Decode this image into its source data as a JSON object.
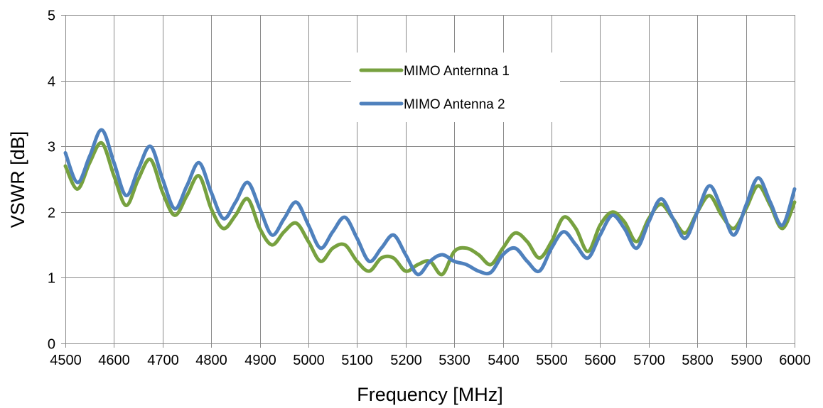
{
  "chart_data": {
    "type": "line",
    "xlabel": "Frequency [MHz]",
    "ylabel": "VSWR [dB]",
    "xlim": [
      4500,
      6000
    ],
    "ylim": [
      0,
      5
    ],
    "x_ticks": [
      4500,
      4600,
      4700,
      4800,
      4900,
      5000,
      5100,
      5200,
      5300,
      5400,
      5500,
      5600,
      5700,
      5800,
      5900,
      6000
    ],
    "y_ticks": [
      0,
      1,
      2,
      3,
      4,
      5
    ],
    "grid": true,
    "legend": "top-center",
    "x": [
      4500,
      4525,
      4550,
      4575,
      4600,
      4625,
      4650,
      4675,
      4700,
      4725,
      4750,
      4775,
      4800,
      4825,
      4850,
      4875,
      4900,
      4925,
      4950,
      4975,
      5000,
      5025,
      5050,
      5075,
      5100,
      5125,
      5150,
      5175,
      5200,
      5225,
      5250,
      5275,
      5300,
      5325,
      5350,
      5375,
      5400,
      5425,
      5450,
      5475,
      5500,
      5525,
      5550,
      5575,
      5600,
      5625,
      5650,
      5675,
      5700,
      5725,
      5750,
      5775,
      5800,
      5825,
      5850,
      5875,
      5900,
      5925,
      5950,
      5975,
      6000
    ],
    "series": [
      {
        "name": "MIMO Anternna 1",
        "color": "#77a13f",
        "values": [
          2.7,
          2.35,
          2.75,
          3.05,
          2.55,
          2.1,
          2.5,
          2.8,
          2.3,
          1.95,
          2.25,
          2.55,
          2.05,
          1.75,
          1.95,
          2.2,
          1.75,
          1.5,
          1.7,
          1.83,
          1.55,
          1.25,
          1.45,
          1.5,
          1.25,
          1.1,
          1.3,
          1.3,
          1.1,
          1.2,
          1.25,
          1.05,
          1.4,
          1.45,
          1.35,
          1.2,
          1.45,
          1.68,
          1.55,
          1.3,
          1.55,
          1.92,
          1.75,
          1.4,
          1.8,
          2.0,
          1.85,
          1.55,
          1.9,
          2.12,
          1.9,
          1.68,
          2.0,
          2.25,
          1.95,
          1.75,
          2.05,
          2.4,
          2.1,
          1.75,
          2.15
        ]
      },
      {
        "name": "MIMO Antenna 2",
        "color": "#4f81bd",
        "values": [
          2.9,
          2.45,
          2.85,
          3.25,
          2.75,
          2.25,
          2.65,
          3.0,
          2.5,
          2.05,
          2.4,
          2.75,
          2.3,
          1.9,
          2.15,
          2.45,
          2.05,
          1.65,
          1.9,
          2.15,
          1.8,
          1.45,
          1.7,
          1.92,
          1.6,
          1.25,
          1.45,
          1.65,
          1.35,
          1.05,
          1.25,
          1.35,
          1.25,
          1.2,
          1.1,
          1.08,
          1.35,
          1.45,
          1.25,
          1.1,
          1.45,
          1.7,
          1.5,
          1.3,
          1.65,
          1.95,
          1.75,
          1.45,
          1.85,
          2.2,
          1.9,
          1.6,
          2.0,
          2.4,
          2.05,
          1.65,
          2.1,
          2.52,
          2.15,
          1.8,
          2.35
        ]
      }
    ]
  }
}
